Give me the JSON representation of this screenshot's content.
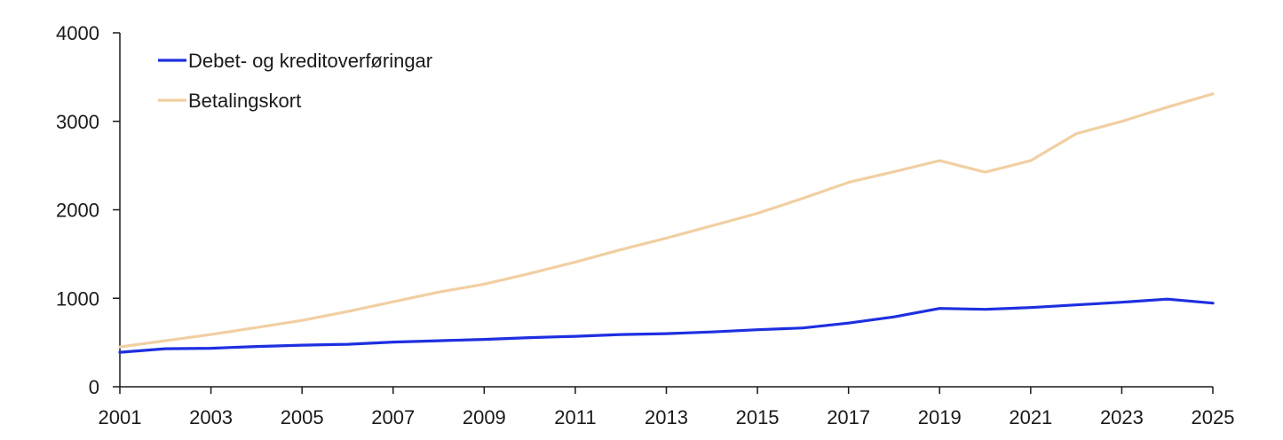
{
  "chart_data": {
    "type": "line",
    "title": "",
    "xlabel": "",
    "ylabel": "",
    "x": [
      2001,
      2002,
      2003,
      2004,
      2005,
      2006,
      2007,
      2008,
      2009,
      2010,
      2011,
      2012,
      2013,
      2014,
      2015,
      2016,
      2017,
      2018,
      2019,
      2020,
      2021,
      2022,
      2023,
      2024,
      2025
    ],
    "xlim": [
      2001,
      2025
    ],
    "ylim": [
      0,
      4000
    ],
    "x_ticks": [
      "2001",
      "2003",
      "2005",
      "2007",
      "2009",
      "2011",
      "2013",
      "2015",
      "2017",
      "2019",
      "2021",
      "2023",
      "2025"
    ],
    "y_ticks": [
      "0",
      "1000",
      "2000",
      "3000",
      "4000"
    ],
    "grid": false,
    "legend_position": "top-left",
    "series": [
      {
        "name": "Debet- og kreditoverføringar",
        "color": "#1e2fe0",
        "values": [
          390,
          430,
          435,
          455,
          470,
          480,
          505,
          520,
          535,
          555,
          570,
          590,
          600,
          620,
          645,
          665,
          720,
          790,
          885,
          875,
          895,
          925,
          955,
          990,
          945
        ]
      },
      {
        "name": "Betalingskort",
        "color": "#f1cfa2",
        "values": [
          450,
          520,
          590,
          670,
          750,
          850,
          960,
          1070,
          1160,
          1280,
          1410,
          1550,
          1680,
          1820,
          1960,
          2130,
          2310,
          2430,
          2555,
          2425,
          2555,
          2860,
          3000,
          3160,
          3310
        ]
      }
    ]
  }
}
